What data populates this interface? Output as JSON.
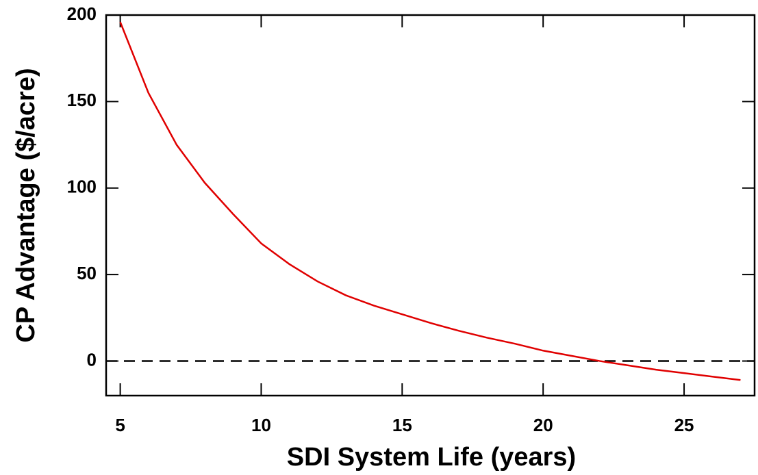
{
  "chart_data": {
    "type": "line",
    "x_label": "SDI System Life (years)",
    "y_label": "CP Advantage ($/acre)",
    "x": [
      5,
      6,
      7,
      8,
      9,
      10,
      11,
      12,
      13,
      14,
      15,
      16,
      17,
      18,
      19,
      20,
      21,
      22,
      23,
      24,
      25,
      26,
      27
    ],
    "series": [
      {
        "color": "#e00000",
        "values": [
          196,
          155,
          125,
          103,
          85,
          68,
          56,
          46,
          38,
          32,
          27,
          22,
          17.5,
          13.5,
          10,
          6,
          3,
          0,
          -2.5,
          -5,
          -7,
          -9,
          -11
        ]
      }
    ],
    "reference_line": 0,
    "xlim": [
      4.5,
      27.5
    ],
    "xticks": [
      5,
      10,
      15,
      20,
      25
    ],
    "ylim": [
      -20,
      200
    ],
    "yticks": [
      0,
      50,
      100,
      150,
      200
    ]
  }
}
